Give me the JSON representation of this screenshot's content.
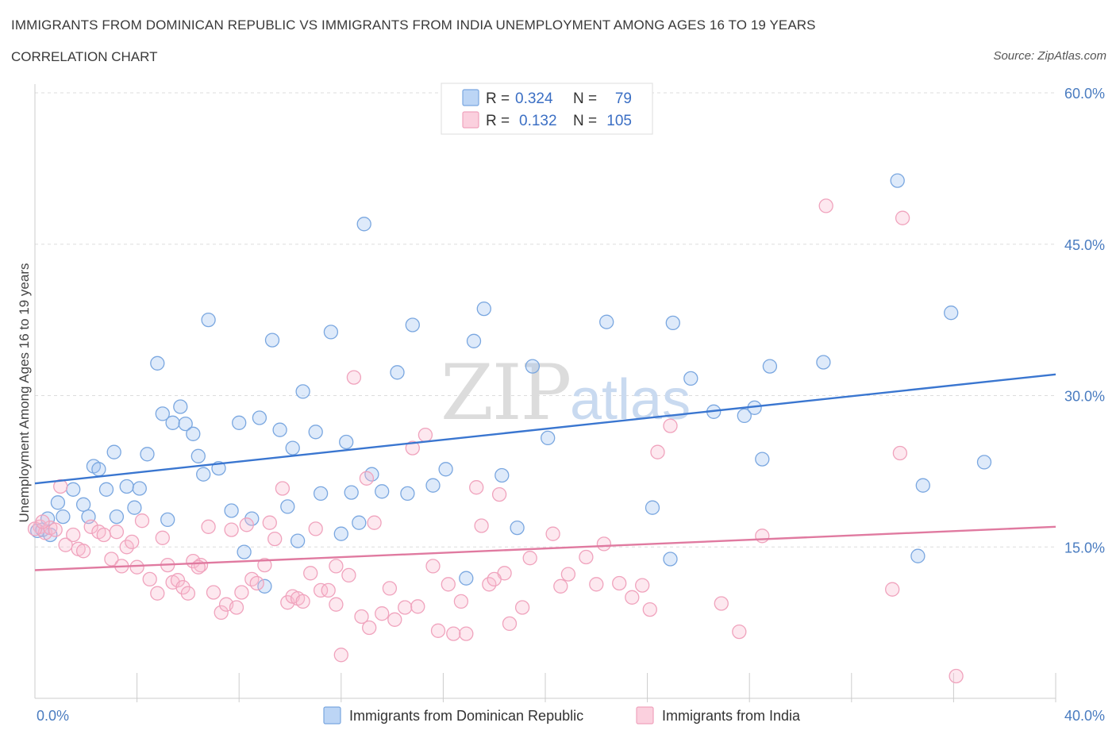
{
  "header": {
    "title": "IMMIGRANTS FROM DOMINICAN REPUBLIC VS IMMIGRANTS FROM INDIA UNEMPLOYMENT AMONG AGES 16 TO 19 YEARS",
    "subtitle": "CORRELATION CHART",
    "source": "Source: ZipAtlas.com"
  },
  "watermark": {
    "zip": "ZIP",
    "atlas": "atlas"
  },
  "legend": {
    "rows": [
      {
        "r_label": "R =",
        "r_value": "0.324",
        "n_label": "N =",
        "n_value": "79",
        "color": "#7aa7e0"
      },
      {
        "r_label": "R =",
        "r_value": "0.132",
        "n_label": "N =",
        "n_value": "105",
        "color": "#f0a3bd"
      }
    ]
  },
  "bottom_legend": {
    "items": [
      {
        "label": "Immigrants from Dominican Republic",
        "color": "#7aa7e0"
      },
      {
        "label": "Immigrants from India",
        "color": "#f0a3bd"
      }
    ]
  },
  "chart_data": {
    "type": "scatter",
    "ylabel": "Unemployment Among Ages 16 to 19 years",
    "xlim": [
      0,
      40
    ],
    "ylim": [
      0,
      60
    ],
    "y_ticks": [
      {
        "value": 15,
        "label": "15.0%"
      },
      {
        "value": 30,
        "label": "30.0%"
      },
      {
        "value": 45,
        "label": "45.0%"
      },
      {
        "value": 60,
        "label": "60.0%"
      }
    ],
    "x_tick_labels": [
      {
        "value": 0,
        "label": "0.0%"
      },
      {
        "value": 40,
        "label": "40.0%"
      }
    ],
    "series": [
      {
        "name": "Immigrants from Dominican Republic",
        "color": "#7aa7e0",
        "trend": {
          "x": [
            0,
            40
          ],
          "y": [
            21.3,
            32.1
          ]
        },
        "points": [
          [
            0.1,
            16.6
          ],
          [
            0.3,
            16.7
          ],
          [
            0.5,
            17.8
          ],
          [
            0.6,
            16.2
          ],
          [
            0.9,
            19.4
          ],
          [
            1.1,
            18.0
          ],
          [
            1.5,
            20.7
          ],
          [
            1.9,
            19.2
          ],
          [
            2.1,
            18.0
          ],
          [
            2.3,
            23.0
          ],
          [
            2.5,
            22.7
          ],
          [
            2.8,
            20.7
          ],
          [
            3.1,
            24.4
          ],
          [
            3.2,
            18.0
          ],
          [
            3.6,
            21.0
          ],
          [
            3.9,
            18.9
          ],
          [
            4.1,
            20.8
          ],
          [
            4.4,
            24.2
          ],
          [
            4.8,
            33.2
          ],
          [
            5.0,
            28.2
          ],
          [
            5.2,
            17.7
          ],
          [
            5.4,
            27.3
          ],
          [
            5.7,
            28.9
          ],
          [
            5.9,
            27.2
          ],
          [
            6.2,
            26.2
          ],
          [
            6.4,
            24.0
          ],
          [
            6.6,
            22.2
          ],
          [
            6.8,
            37.5
          ],
          [
            7.2,
            22.8
          ],
          [
            7.7,
            18.6
          ],
          [
            8.0,
            27.3
          ],
          [
            8.2,
            14.5
          ],
          [
            8.5,
            17.8
          ],
          [
            8.8,
            27.8
          ],
          [
            9.0,
            11.1
          ],
          [
            9.3,
            35.5
          ],
          [
            9.6,
            26.6
          ],
          [
            9.9,
            19.0
          ],
          [
            10.1,
            24.8
          ],
          [
            10.3,
            15.6
          ],
          [
            10.5,
            30.4
          ],
          [
            11.0,
            26.4
          ],
          [
            11.2,
            20.3
          ],
          [
            11.6,
            36.3
          ],
          [
            12.0,
            16.3
          ],
          [
            12.2,
            25.4
          ],
          [
            12.4,
            20.4
          ],
          [
            12.7,
            17.4
          ],
          [
            12.9,
            47.0
          ],
          [
            13.2,
            22.2
          ],
          [
            13.6,
            20.5
          ],
          [
            14.2,
            32.3
          ],
          [
            14.6,
            20.3
          ],
          [
            14.8,
            37.0
          ],
          [
            15.6,
            21.1
          ],
          [
            16.1,
            22.7
          ],
          [
            16.9,
            11.9
          ],
          [
            17.2,
            35.4
          ],
          [
            17.6,
            38.6
          ],
          [
            18.3,
            22.1
          ],
          [
            18.9,
            16.9
          ],
          [
            19.5,
            32.9
          ],
          [
            20.1,
            25.8
          ],
          [
            22.4,
            37.3
          ],
          [
            24.2,
            18.9
          ],
          [
            24.9,
            13.8
          ],
          [
            25.0,
            37.2
          ],
          [
            25.7,
            31.7
          ],
          [
            26.6,
            28.4
          ],
          [
            27.8,
            28.0
          ],
          [
            28.2,
            28.8
          ],
          [
            28.5,
            23.7
          ],
          [
            28.8,
            32.9
          ],
          [
            30.9,
            33.3
          ],
          [
            33.8,
            51.3
          ],
          [
            34.6,
            14.1
          ],
          [
            34.8,
            21.1
          ],
          [
            35.9,
            38.2
          ],
          [
            37.2,
            23.4
          ]
        ]
      },
      {
        "name": "Immigrants from India",
        "color": "#f0a3bd",
        "trend": {
          "x": [
            0,
            40
          ],
          "y": [
            12.7,
            17.0
          ]
        },
        "points": [
          [
            0.2,
            17.0
          ],
          [
            0.4,
            16.4
          ],
          [
            0.6,
            16.9
          ],
          [
            0.8,
            16.7
          ],
          [
            1.0,
            21.0
          ],
          [
            1.2,
            15.2
          ],
          [
            1.5,
            16.2
          ],
          [
            1.7,
            14.8
          ],
          [
            1.9,
            14.6
          ],
          [
            2.2,
            17.0
          ],
          [
            2.5,
            16.5
          ],
          [
            2.7,
            16.2
          ],
          [
            3.0,
            13.8
          ],
          [
            3.2,
            16.5
          ],
          [
            3.4,
            13.1
          ],
          [
            3.6,
            15.0
          ],
          [
            3.8,
            15.5
          ],
          [
            4.0,
            13.0
          ],
          [
            4.2,
            17.6
          ],
          [
            4.5,
            11.8
          ],
          [
            4.8,
            10.4
          ],
          [
            5.0,
            15.9
          ],
          [
            5.2,
            13.2
          ],
          [
            5.4,
            11.5
          ],
          [
            5.6,
            11.7
          ],
          [
            5.8,
            11.0
          ],
          [
            6.0,
            10.4
          ],
          [
            6.2,
            13.6
          ],
          [
            6.5,
            13.2
          ],
          [
            6.8,
            17.0
          ],
          [
            7.0,
            10.5
          ],
          [
            7.3,
            8.5
          ],
          [
            7.5,
            9.3
          ],
          [
            7.7,
            16.7
          ],
          [
            7.9,
            9.0
          ],
          [
            8.1,
            10.5
          ],
          [
            8.3,
            17.2
          ],
          [
            8.5,
            11.8
          ],
          [
            8.7,
            11.4
          ],
          [
            9.0,
            13.2
          ],
          [
            9.2,
            17.4
          ],
          [
            9.4,
            15.8
          ],
          [
            9.7,
            20.8
          ],
          [
            9.9,
            9.5
          ],
          [
            10.1,
            10.1
          ],
          [
            10.3,
            9.9
          ],
          [
            10.5,
            9.6
          ],
          [
            10.8,
            12.4
          ],
          [
            11.0,
            16.8
          ],
          [
            11.2,
            10.7
          ],
          [
            11.5,
            10.7
          ],
          [
            11.8,
            13.1
          ],
          [
            12.0,
            4.3
          ],
          [
            12.3,
            12.2
          ],
          [
            12.5,
            31.8
          ],
          [
            12.8,
            8.1
          ],
          [
            13.0,
            21.8
          ],
          [
            13.1,
            7.0
          ],
          [
            13.3,
            17.4
          ],
          [
            13.6,
            8.4
          ],
          [
            13.9,
            10.9
          ],
          [
            14.1,
            7.8
          ],
          [
            14.5,
            9.0
          ],
          [
            14.8,
            24.8
          ],
          [
            15.0,
            9.1
          ],
          [
            15.3,
            26.1
          ],
          [
            15.6,
            13.1
          ],
          [
            15.8,
            6.7
          ],
          [
            16.2,
            11.3
          ],
          [
            16.4,
            6.4
          ],
          [
            16.7,
            9.6
          ],
          [
            16.9,
            6.4
          ],
          [
            17.3,
            20.9
          ],
          [
            17.5,
            17.1
          ],
          [
            17.8,
            11.3
          ],
          [
            18.2,
            20.2
          ],
          [
            18.4,
            12.4
          ],
          [
            18.6,
            7.4
          ],
          [
            19.1,
            9.0
          ],
          [
            19.4,
            13.9
          ],
          [
            20.3,
            16.3
          ],
          [
            20.6,
            11.1
          ],
          [
            20.9,
            12.3
          ],
          [
            21.6,
            14.0
          ],
          [
            22.0,
            11.3
          ],
          [
            22.3,
            15.3
          ],
          [
            22.9,
            11.4
          ],
          [
            23.4,
            10.0
          ],
          [
            23.8,
            11.2
          ],
          [
            24.1,
            8.8
          ],
          [
            24.4,
            24.4
          ],
          [
            24.9,
            27.0
          ],
          [
            26.9,
            9.4
          ],
          [
            27.6,
            6.6
          ],
          [
            28.5,
            16.1
          ],
          [
            31.0,
            48.8
          ],
          [
            33.6,
            10.8
          ],
          [
            33.9,
            24.3
          ],
          [
            34.0,
            47.6
          ],
          [
            36.1,
            2.2
          ],
          [
            0.0,
            16.8
          ],
          [
            0.3,
            17.5
          ],
          [
            6.4,
            13.0
          ],
          [
            11.8,
            9.3
          ],
          [
            18.0,
            11.8
          ]
        ]
      }
    ]
  }
}
